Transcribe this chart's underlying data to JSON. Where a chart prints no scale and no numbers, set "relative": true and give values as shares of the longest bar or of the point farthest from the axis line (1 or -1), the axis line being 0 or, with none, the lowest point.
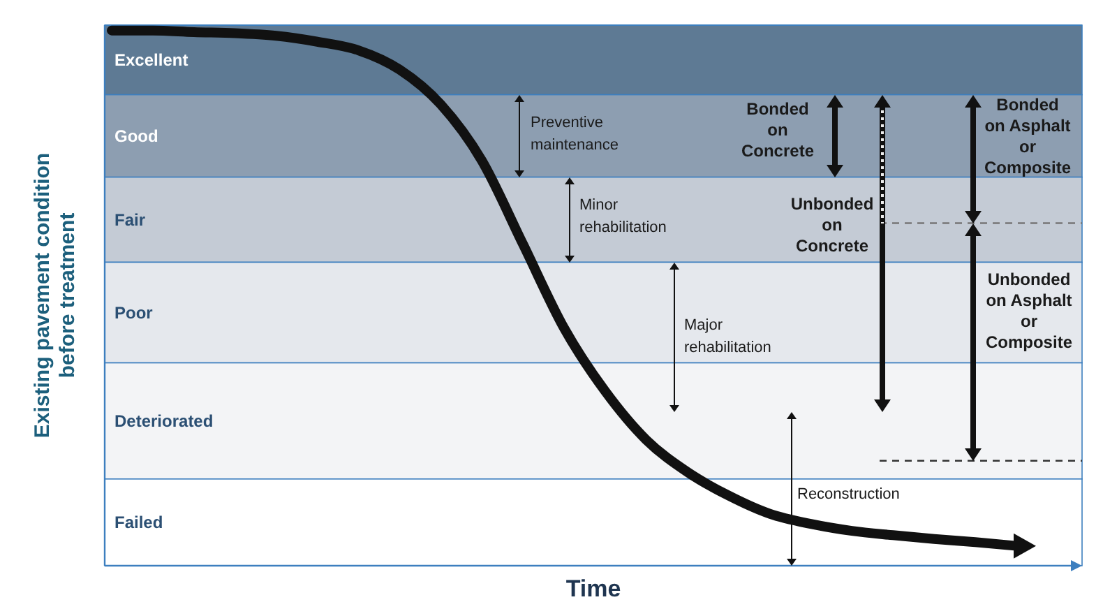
{
  "chart_data": {
    "type": "line",
    "relative": true,
    "xlabel": "Time",
    "ylabel": "Existing pavement condition before treatment",
    "categories": [
      null,
      null,
      null,
      null,
      null,
      null,
      null,
      null,
      null,
      null,
      null,
      null,
      null,
      null,
      null,
      null,
      null,
      null,
      null,
      null,
      null,
      null,
      null
    ],
    "series": [
      {
        "color": "#111111",
        "values": [
          1,
          1,
          0.997,
          0.995,
          0.99,
          0.979,
          0.963,
          0.927,
          0.862,
          0.757,
          0.601,
          0.444,
          0.326,
          0.235,
          0.175,
          0.131,
          0.097,
          0.078,
          0.065,
          0.057,
          0.05,
          0.044,
          0.037
        ]
      }
    ],
    "bands": [
      {
        "axis": "y",
        "from": 0.88,
        "to": 1.01,
        "label": "Excellent",
        "color": "#5e7a94"
      },
      {
        "axis": "y",
        "from": 0.726,
        "to": 0.88,
        "label": "Good",
        "color": "#8d9eb1"
      },
      {
        "axis": "y",
        "from": 0.567,
        "to": 0.726,
        "label": "Fair",
        "color": "#c4cbd5"
      },
      {
        "axis": "y",
        "from": 0.379,
        "to": 0.567,
        "label": "Poor",
        "color": "#e5e8ed"
      },
      {
        "axis": "y",
        "from": 0.162,
        "to": 0.379,
        "label": "Deteriorated",
        "color": "#f3f4f6"
      },
      {
        "axis": "y",
        "from": 0,
        "to": 0.162,
        "label": "Failed",
        "color": "#ffffff"
      }
    ],
    "ref_lines": [
      {
        "axis": "y",
        "value": 0.64,
        "line_style": "dashed",
        "color": "#777777"
      },
      {
        "axis": "y",
        "value": 0.196,
        "line_style": "dashed",
        "color": "#333333"
      }
    ],
    "annotations": [
      "Preventive\nmaintenance",
      "Minor\nrehabilitation",
      "Major\nrehabilitation",
      "Reconstruction",
      "Bonded\non\nConcrete",
      "Unbonded\non\nConcrete",
      "Bonded\non Asphalt\nor\nComposite",
      "Unbonded\non Asphalt\nor\nComposite"
    ],
    "grid": false,
    "legend": false,
    "line_style": "solid"
  }
}
